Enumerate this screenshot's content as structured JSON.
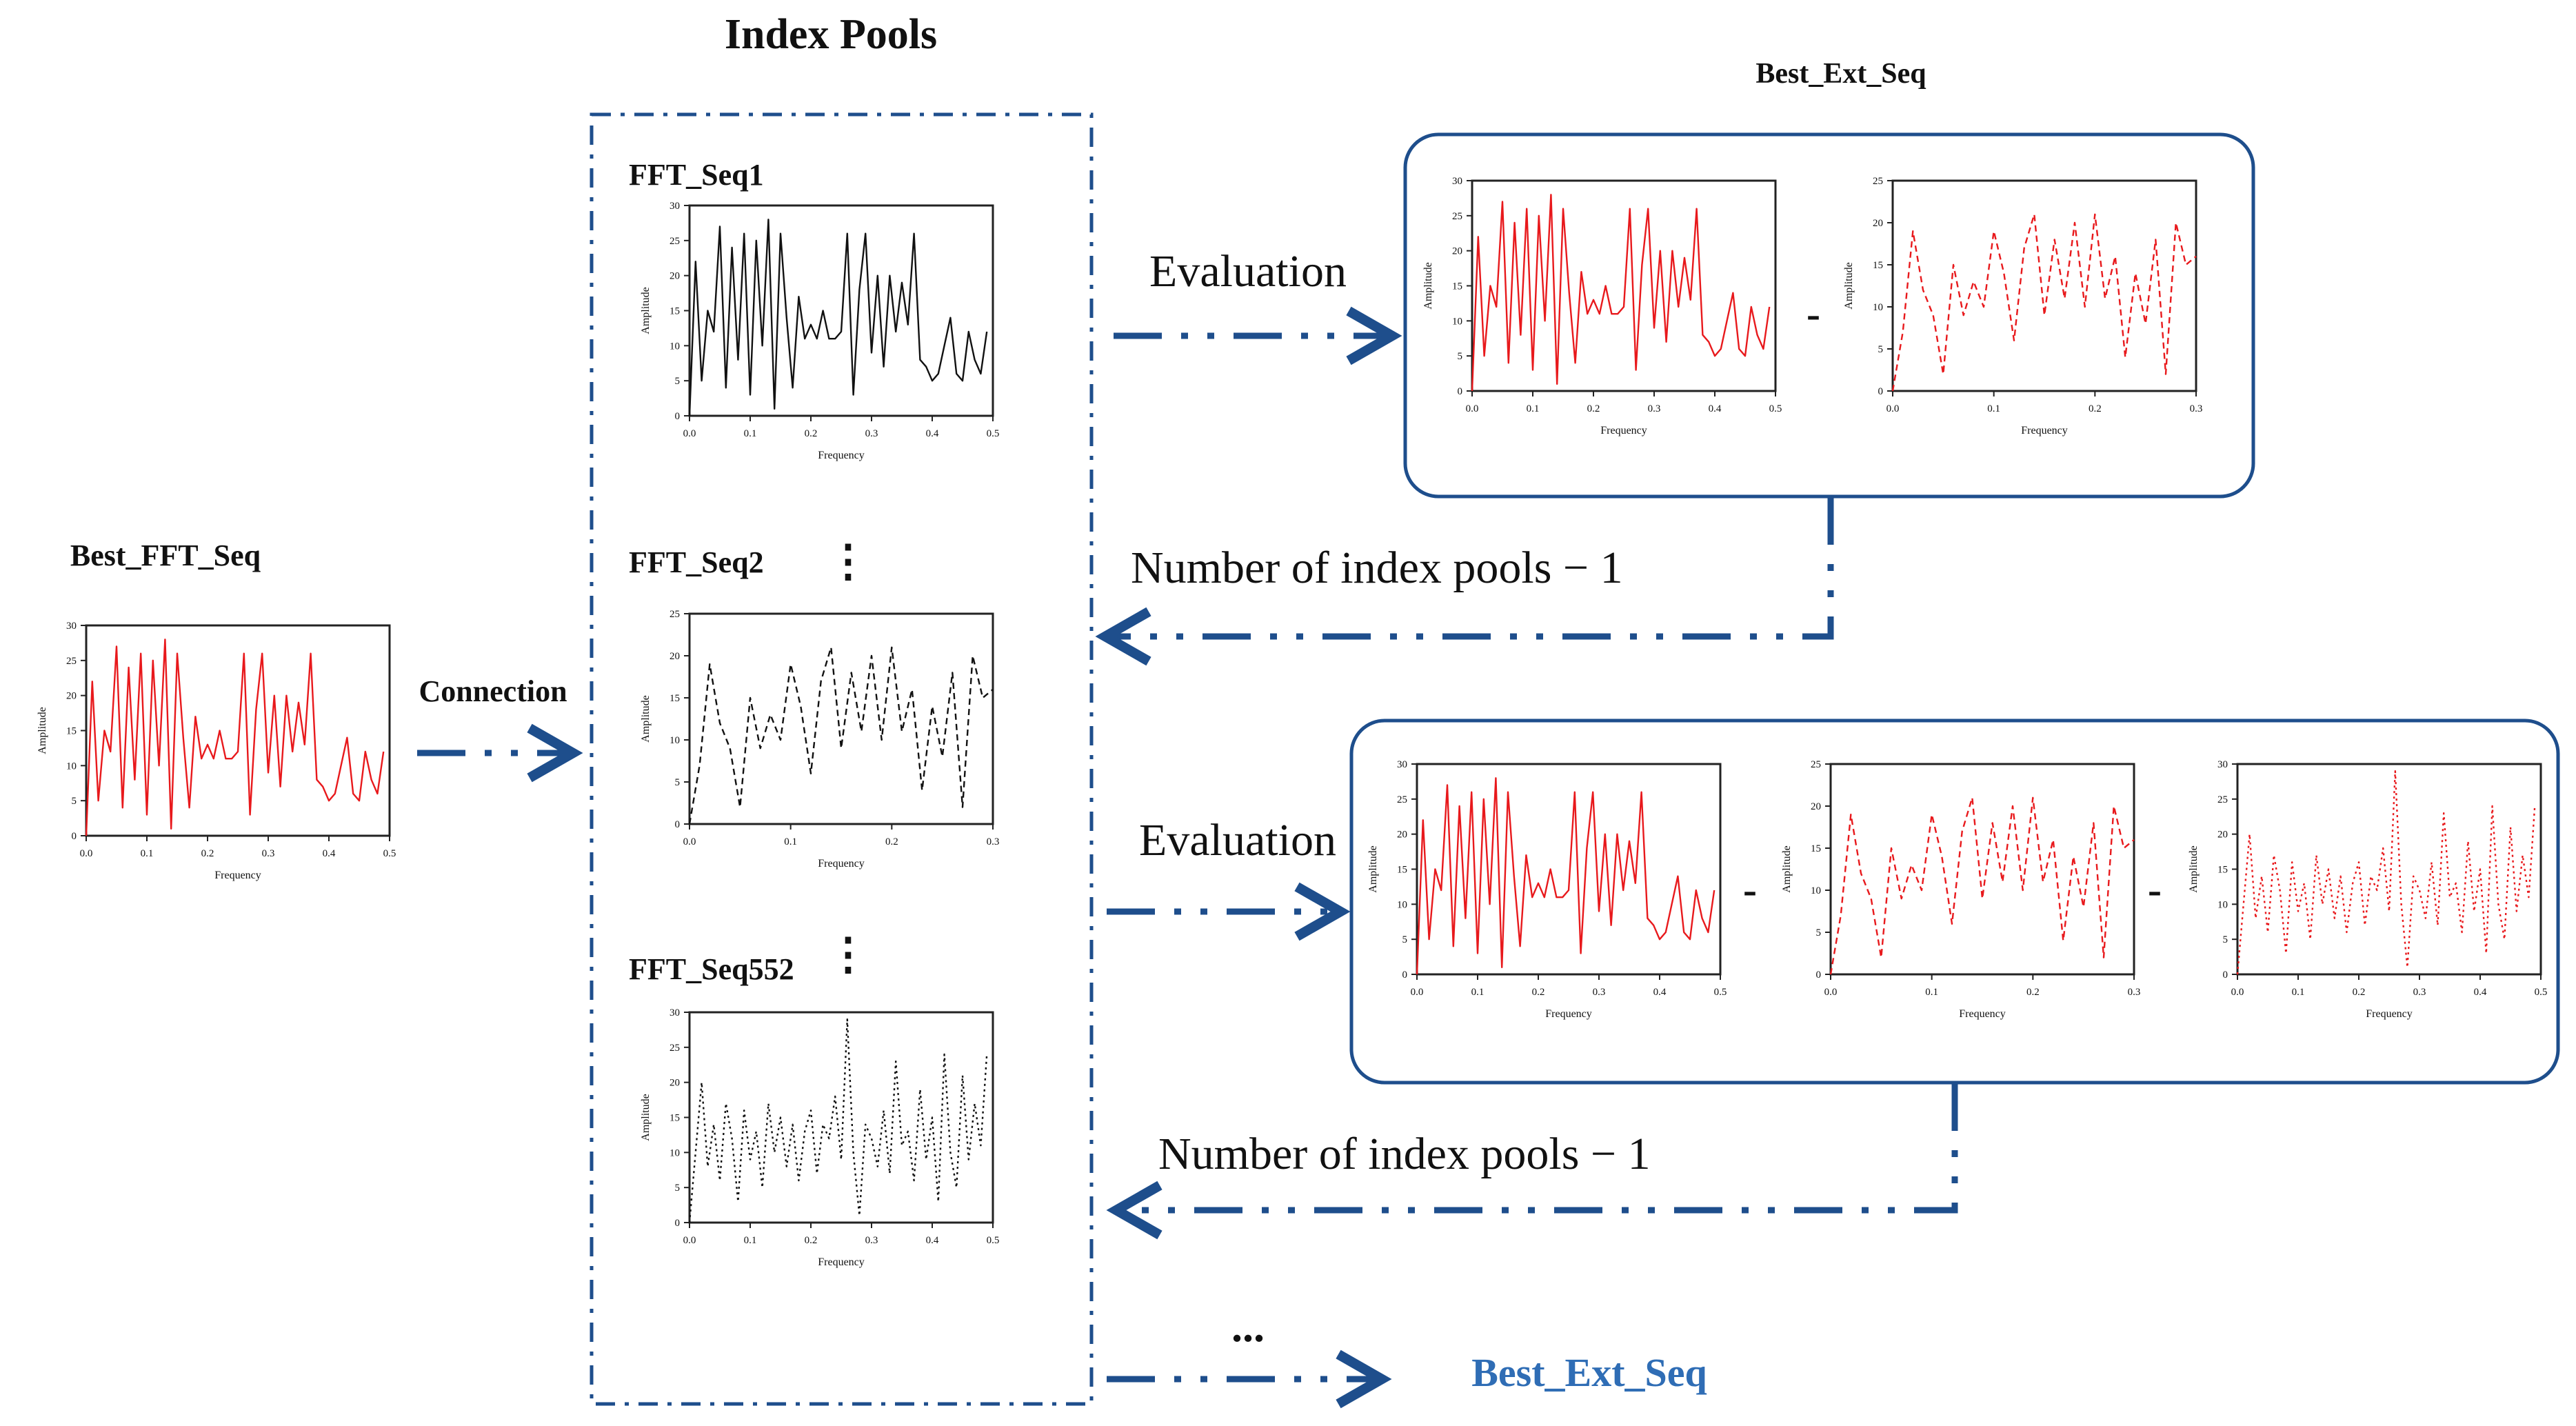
{
  "titles": {
    "index_pools": "Index Pools",
    "best_ext_seq_top": "Best_Ext_Seq",
    "best_fft_seq": "Best_FFT_Seq",
    "best_ext_seq_final": "Best_Ext_Seq"
  },
  "pool_items": [
    "FFT_Seq1",
    "FFT_Seq2",
    "FFT_Seq552"
  ],
  "labels": {
    "connection": "Connection",
    "evaluation_1": "Evaluation",
    "evaluation_2": "Evaluation",
    "loop_1": "Number of index pools − 1",
    "loop_2": "Number of index pools − 1",
    "vdots_1": "⋮",
    "vdots_2": "⋮",
    "hdots": "...",
    "minus_1": "-",
    "minus_2": "-",
    "minus_3": "-"
  },
  "axis_text": {
    "xlabel": "Frequency",
    "ylabel": "Amplitude"
  },
  "colors": {
    "flow": "#1e4e8c",
    "red": "#e8191c",
    "black": "#111111",
    "final_label": "#2f6db5"
  },
  "chart_data": [
    {
      "id": "seq_a",
      "type": "line",
      "xlabel": "Frequency",
      "ylabel": "Amplitude",
      "xlim": [
        0,
        0.5
      ],
      "ylim": [
        0,
        30
      ],
      "xticks": [
        "0.0",
        "0.1",
        "0.2",
        "0.3",
        "0.4",
        "0.5"
      ],
      "yticks": [
        "0",
        "5",
        "10",
        "15",
        "20",
        "25",
        "30"
      ],
      "x": [
        0.0,
        0.01,
        0.02,
        0.03,
        0.04,
        0.05,
        0.06,
        0.07,
        0.08,
        0.09,
        0.1,
        0.11,
        0.12,
        0.13,
        0.14,
        0.15,
        0.16,
        0.17,
        0.18,
        0.19,
        0.2,
        0.21,
        0.22,
        0.23,
        0.24,
        0.25,
        0.26,
        0.27,
        0.28,
        0.29,
        0.3,
        0.31,
        0.32,
        0.33,
        0.34,
        0.35,
        0.36,
        0.37,
        0.38,
        0.39,
        0.4,
        0.41,
        0.42,
        0.43,
        0.44,
        0.45,
        0.46,
        0.47,
        0.48,
        0.49
      ],
      "values": [
        0,
        22,
        5,
        15,
        12,
        27,
        4,
        24,
        8,
        26,
        3,
        25,
        10,
        28,
        1,
        26,
        14,
        4,
        17,
        11,
        13,
        11,
        15,
        11,
        11,
        12,
        26,
        3,
        18,
        26,
        9,
        20,
        7,
        20,
        12,
        19,
        13,
        26,
        8,
        7,
        5,
        6,
        10,
        14,
        6,
        5,
        12,
        8,
        6,
        12
      ]
    },
    {
      "id": "seq_b",
      "type": "line",
      "xlabel": "Frequency",
      "ylabel": "Amplitude",
      "xlim": [
        0,
        0.3
      ],
      "ylim": [
        0,
        25
      ],
      "xticks": [
        "0.0",
        "0.1",
        "0.2",
        "0.3"
      ],
      "yticks": [
        "0",
        "5",
        "10",
        "15",
        "20",
        "25"
      ],
      "x": [
        0.0,
        0.01,
        0.02,
        0.03,
        0.04,
        0.05,
        0.06,
        0.07,
        0.08,
        0.09,
        0.1,
        0.11,
        0.12,
        0.13,
        0.14,
        0.15,
        0.16,
        0.17,
        0.18,
        0.19,
        0.2,
        0.21,
        0.22,
        0.23,
        0.24,
        0.25,
        0.26,
        0.27,
        0.28,
        0.29,
        0.3
      ],
      "values": [
        0,
        7,
        19,
        12,
        9,
        2,
        15,
        9,
        13,
        10,
        19,
        14,
        6,
        17,
        21,
        9,
        18,
        11,
        20,
        10,
        21,
        11,
        16,
        4,
        14,
        8,
        18,
        2,
        20,
        15,
        16
      ]
    },
    {
      "id": "seq_c",
      "type": "line",
      "xlabel": "Frequency",
      "ylabel": "Amplitude",
      "xlim": [
        0,
        0.5
      ],
      "ylim": [
        0,
        30
      ],
      "xticks": [
        "0.0",
        "0.1",
        "0.2",
        "0.3",
        "0.4",
        "0.5"
      ],
      "yticks": [
        "0",
        "5",
        "10",
        "15",
        "20",
        "25",
        "30"
      ],
      "x": [
        0.0,
        0.01,
        0.02,
        0.03,
        0.04,
        0.05,
        0.06,
        0.07,
        0.08,
        0.09,
        0.1,
        0.11,
        0.12,
        0.13,
        0.14,
        0.15,
        0.16,
        0.17,
        0.18,
        0.19,
        0.2,
        0.21,
        0.22,
        0.23,
        0.24,
        0.25,
        0.26,
        0.27,
        0.28,
        0.29,
        0.3,
        0.31,
        0.32,
        0.33,
        0.34,
        0.35,
        0.36,
        0.37,
        0.38,
        0.39,
        0.4,
        0.41,
        0.42,
        0.43,
        0.44,
        0.45,
        0.46,
        0.47,
        0.48,
        0.49
      ],
      "values": [
        0,
        10,
        20,
        8,
        14,
        6,
        17,
        12,
        3,
        16,
        9,
        13,
        5,
        17,
        10,
        15,
        8,
        14,
        6,
        13,
        16,
        7,
        14,
        12,
        18,
        9,
        29,
        10,
        1,
        14,
        12,
        8,
        16,
        7,
        23,
        11,
        13,
        6,
        19,
        9,
        15,
        3,
        24,
        10,
        5,
        21,
        9,
        17,
        11,
        24
      ]
    }
  ],
  "charts": [
    {
      "id": "c_left",
      "series": "seq_a",
      "color": "#e8191c",
      "dash": "solid"
    },
    {
      "id": "c_pool1",
      "series": "seq_a",
      "color": "#111111",
      "dash": "solid"
    },
    {
      "id": "c_pool2",
      "series": "seq_b",
      "color": "#111111",
      "dash": "dashed"
    },
    {
      "id": "c_pool3",
      "series": "seq_c",
      "color": "#111111",
      "dash": "dotted"
    },
    {
      "id": "c_top1",
      "series": "seq_a",
      "color": "#e8191c",
      "dash": "solid"
    },
    {
      "id": "c_top2",
      "series": "seq_b",
      "color": "#e8191c",
      "dash": "dashed"
    },
    {
      "id": "c_bot1",
      "series": "seq_a",
      "color": "#e8191c",
      "dash": "solid"
    },
    {
      "id": "c_bot2",
      "series": "seq_b",
      "color": "#e8191c",
      "dash": "dashed"
    },
    {
      "id": "c_bot3",
      "series": "seq_c",
      "color": "#e8191c",
      "dash": "dotted"
    }
  ]
}
